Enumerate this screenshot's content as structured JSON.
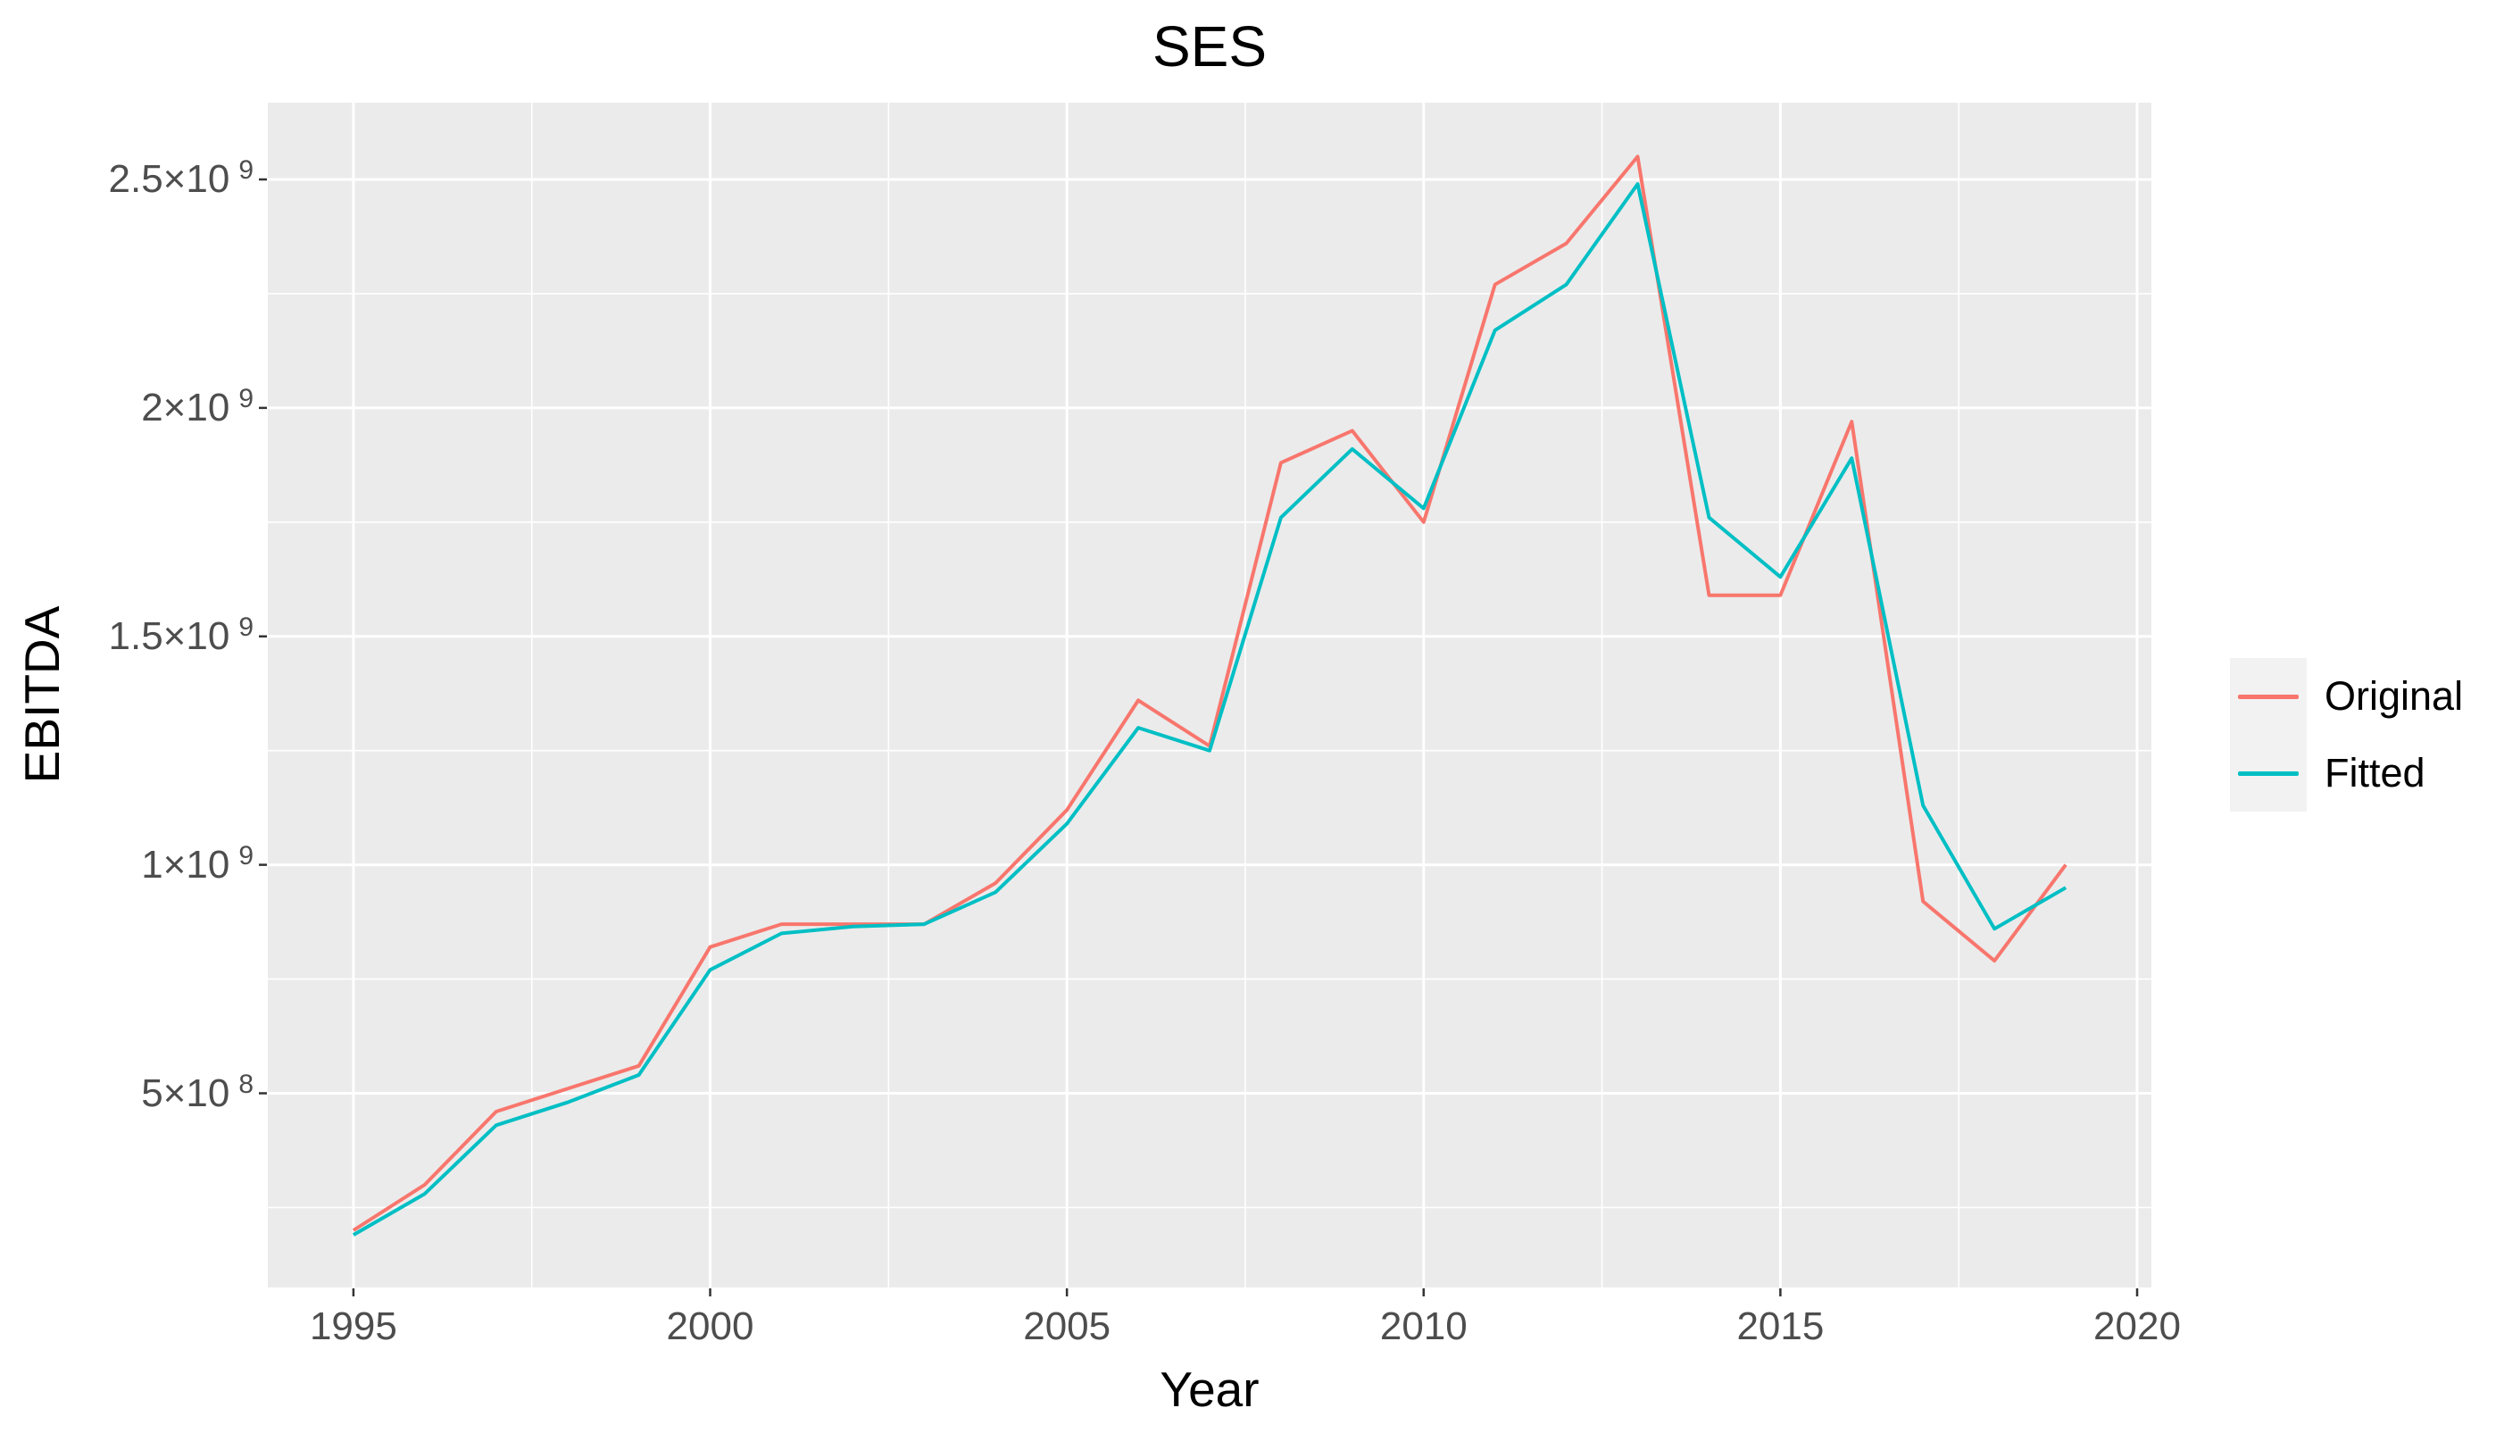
{
  "figure": {
    "title": "SES",
    "xlabel": "Year",
    "ylabel": "EBITDA"
  },
  "legend": {
    "items": [
      {
        "label": "Original",
        "color": "#F8766D"
      },
      {
        "label": "Fitted",
        "color": "#00BFC4"
      }
    ]
  },
  "chart_data": {
    "type": "line",
    "title": "SES",
    "xlabel": "Year",
    "ylabel": "EBITDA",
    "x": [
      1995,
      1996,
      1997,
      1998,
      1999,
      2000,
      2001,
      2002,
      2003,
      2004,
      2005,
      2006,
      2007,
      2008,
      2009,
      2010,
      2011,
      2012,
      2013,
      2014,
      2015,
      2016,
      2017,
      2018,
      2019
    ],
    "series": [
      {
        "name": "Original",
        "color": "#F8766D",
        "values": [
          200000000,
          300000000,
          460000000,
          510000000,
          560000000,
          820000000,
          870000000,
          870000000,
          870000000,
          960000000,
          1120000000,
          1360000000,
          1260000000,
          1880000000,
          1950000000,
          1750000000,
          2270000000,
          2360000000,
          2550000000,
          1590000000,
          1590000000,
          1970000000,
          920000000,
          790000000,
          1000000000
        ]
      },
      {
        "name": "Fitted",
        "color": "#00BFC4",
        "values": [
          190000000,
          280000000,
          430000000,
          480000000,
          540000000,
          770000000,
          850000000,
          865000000,
          870000000,
          940000000,
          1090000000,
          1300000000,
          1250000000,
          1760000000,
          1910000000,
          1780000000,
          2170000000,
          2270000000,
          2490000000,
          1760000000,
          1630000000,
          1890000000,
          1130000000,
          860000000,
          950000000
        ]
      }
    ],
    "x_ticks": [
      1995,
      2000,
      2005,
      2010,
      2015,
      2020
    ],
    "x_tick_labels": [
      "1995",
      "2000",
      "2005",
      "2010",
      "2015",
      "2020"
    ],
    "x_minor_ticks": [
      1997.5,
      2002.5,
      2007.5,
      2012.5,
      2017.5
    ],
    "y_ticks": [
      {
        "value": 500000000,
        "mantissa": "5×10",
        "exp": "8"
      },
      {
        "value": 1000000000,
        "mantissa": "1×10",
        "exp": "9"
      },
      {
        "value": 1500000000,
        "mantissa": "1.5×10",
        "exp": "9"
      },
      {
        "value": 2000000000,
        "mantissa": "2×10",
        "exp": "9"
      },
      {
        "value": 2500000000,
        "mantissa": "2.5×10",
        "exp": "9"
      }
    ],
    "y_minor_ticks": [
      250000000,
      750000000,
      1250000000,
      1750000000,
      2250000000
    ],
    "xlim": [
      1993.8,
      2020.2
    ],
    "ylim": [
      75000000,
      2668000000
    ],
    "grid": true,
    "legend_position": "right",
    "colors": {
      "panel_bg": "#EBEBEB",
      "grid": "#FFFFFF",
      "tick_mark": "#333333",
      "tick_label": "#4d4d4d",
      "title_text": "#000000",
      "legend_key_bg": "#F2F2F2"
    }
  }
}
